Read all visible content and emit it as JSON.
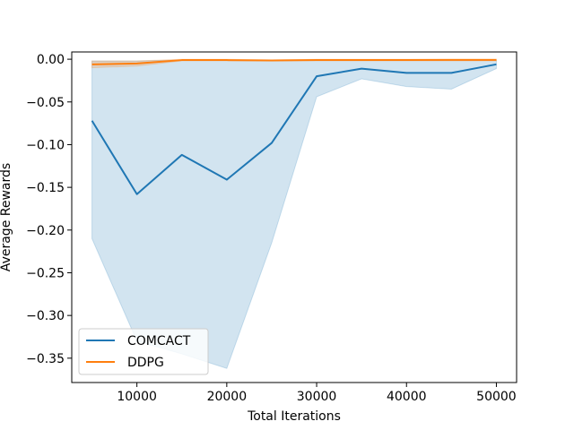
{
  "chart_data": {
    "type": "line",
    "title": "",
    "xlabel": "Total Iterations",
    "ylabel": "Average Rewards",
    "xlim": [
      2750,
      52250
    ],
    "ylim": [
      -0.3785,
      0.0085
    ],
    "xticks": [
      10000,
      20000,
      30000,
      40000,
      50000
    ],
    "xtick_labels": [
      "10000",
      "20000",
      "30000",
      "40000",
      "50000"
    ],
    "yticks": [
      0.0,
      -0.05,
      -0.1,
      -0.15,
      -0.2,
      -0.25,
      -0.3,
      -0.35
    ],
    "ytick_labels": [
      "0.00",
      "−0.05",
      "−0.10",
      "−0.15",
      "−0.20",
      "−0.25",
      "−0.30",
      "−0.35"
    ],
    "grid": false,
    "legend_position": "lower-left",
    "x": [
      5000,
      10000,
      15000,
      20000,
      25000,
      30000,
      35000,
      40000,
      45000,
      50000
    ],
    "series": [
      {
        "name": "COMCACT",
        "color": "#1f77b4",
        "values": [
          -0.072,
          -0.158,
          -0.112,
          -0.141,
          -0.098,
          -0.02,
          -0.011,
          -0.016,
          -0.016,
          -0.006
        ],
        "band_upper": [
          -0.002,
          -0.002,
          -0.001,
          -0.001,
          -0.001,
          -0.001,
          -0.001,
          -0.001,
          -0.001,
          -0.001
        ],
        "band_lower": [
          -0.21,
          -0.33,
          -0.345,
          -0.362,
          -0.215,
          -0.044,
          -0.023,
          -0.032,
          -0.035,
          -0.011
        ]
      },
      {
        "name": "DDPG",
        "color": "#ff7f0e",
        "values": [
          -0.006,
          -0.005,
          -0.001,
          -0.001,
          -0.0015,
          -0.001,
          -0.001,
          -0.001,
          -0.0008,
          -0.0008
        ],
        "band_upper": [
          -0.002,
          -0.002,
          0.0,
          0.0,
          -0.001,
          0.0,
          0.0,
          0.0,
          0.0,
          0.0
        ],
        "band_lower": [
          -0.01,
          -0.008,
          -0.002,
          -0.002,
          -0.002,
          -0.002,
          -0.002,
          -0.002,
          -0.002,
          -0.002
        ]
      }
    ]
  }
}
